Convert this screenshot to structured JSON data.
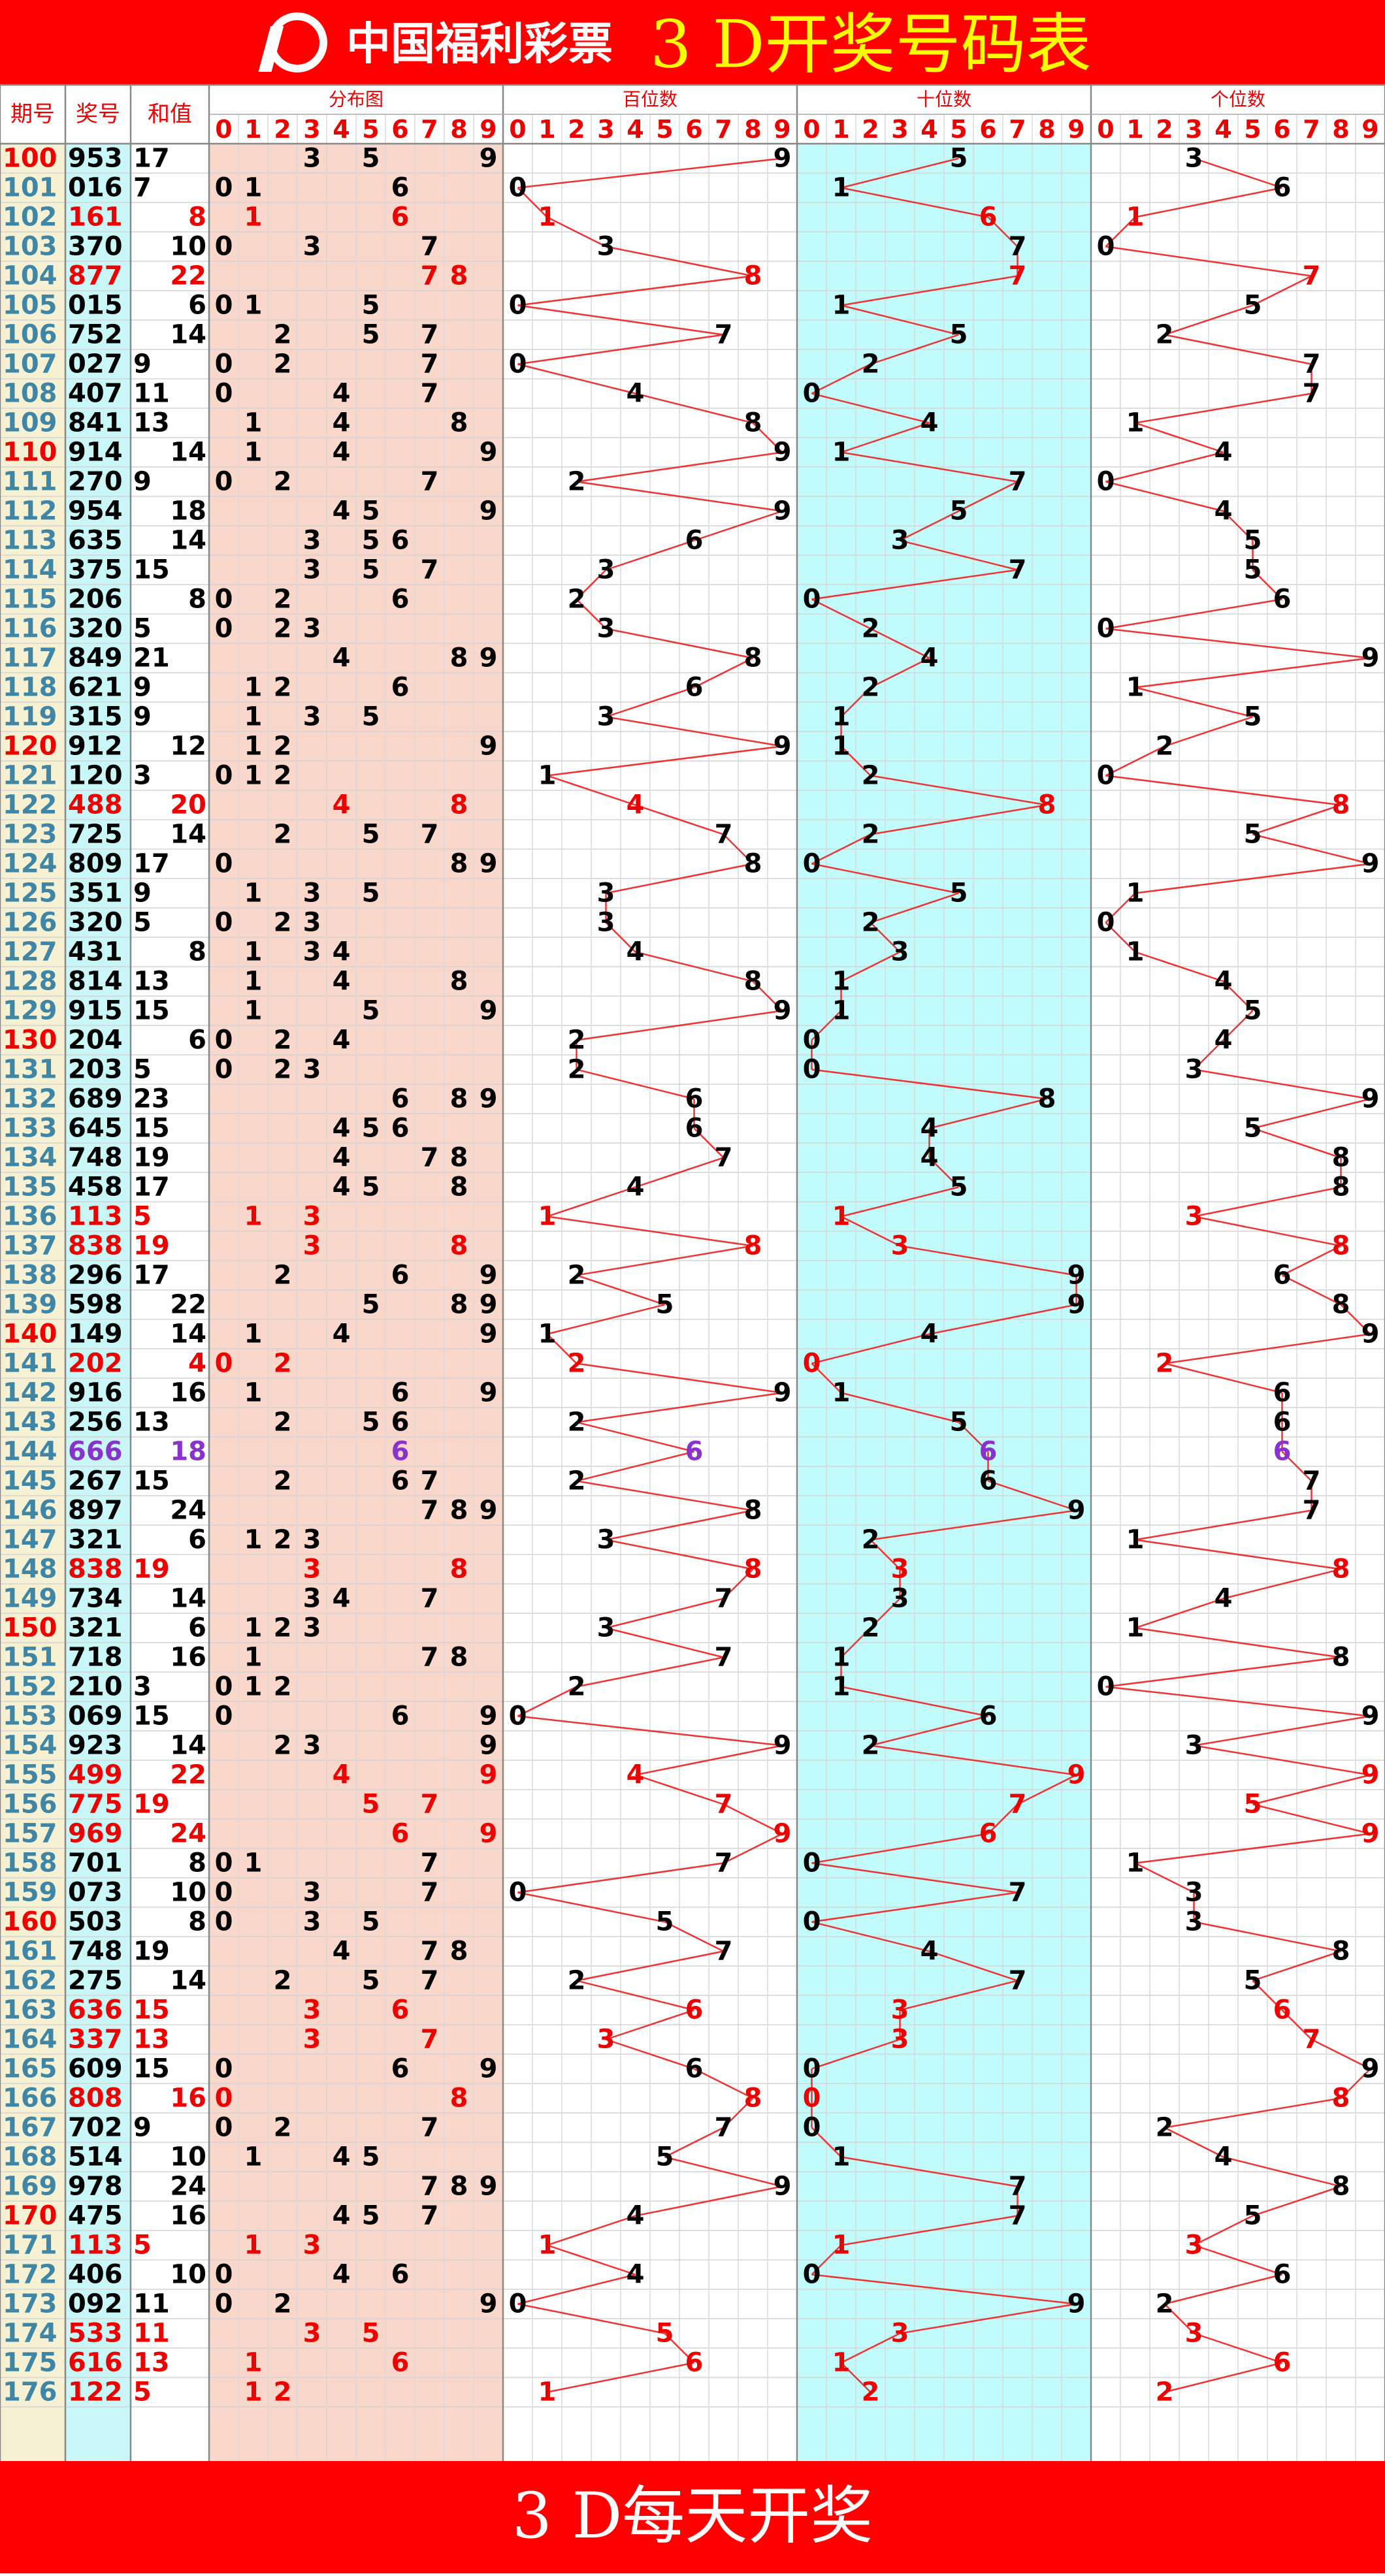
{
  "header": {
    "logo": "中国福利彩票",
    "title": "3 D开奖号码表"
  },
  "columns": {
    "period": "期号",
    "number": "奖号",
    "sum": "和值",
    "blocks": [
      "分布图",
      "百位数",
      "十位数",
      "个位数"
    ],
    "digits": [
      0,
      1,
      2,
      3,
      4,
      5,
      6,
      7,
      8,
      9
    ]
  },
  "rows": [
    {
      "period": 100,
      "digits": [
        9,
        5,
        3
      ],
      "sum": 17
    },
    {
      "period": 101,
      "digits": [
        0,
        1,
        6
      ],
      "sum": 7
    },
    {
      "period": 102,
      "digits": [
        1,
        6,
        1
      ],
      "sum": 8
    },
    {
      "period": 103,
      "digits": [
        3,
        7,
        0
      ],
      "sum": 10
    },
    {
      "period": 104,
      "digits": [
        8,
        7,
        7
      ],
      "sum": 22
    },
    {
      "period": 105,
      "digits": [
        0,
        1,
        5
      ],
      "sum": 6
    },
    {
      "period": 106,
      "digits": [
        7,
        5,
        2
      ],
      "sum": 14
    },
    {
      "period": 107,
      "digits": [
        0,
        2,
        7
      ],
      "sum": 9
    },
    {
      "period": 108,
      "digits": [
        4,
        0,
        7
      ],
      "sum": 11
    },
    {
      "period": 109,
      "digits": [
        8,
        4,
        1
      ],
      "sum": 13
    },
    {
      "period": 110,
      "digits": [
        9,
        1,
        4
      ],
      "sum": 14
    },
    {
      "period": 111,
      "digits": [
        2,
        7,
        0
      ],
      "sum": 9
    },
    {
      "period": 112,
      "digits": [
        9,
        5,
        4
      ],
      "sum": 18
    },
    {
      "period": 113,
      "digits": [
        6,
        3,
        5
      ],
      "sum": 14
    },
    {
      "period": 114,
      "digits": [
        3,
        7,
        5
      ],
      "sum": 15
    },
    {
      "period": 115,
      "digits": [
        2,
        0,
        6
      ],
      "sum": 8
    },
    {
      "period": 116,
      "digits": [
        3,
        2,
        0
      ],
      "sum": 5
    },
    {
      "period": 117,
      "digits": [
        8,
        4,
        9
      ],
      "sum": 21
    },
    {
      "period": 118,
      "digits": [
        6,
        2,
        1
      ],
      "sum": 9
    },
    {
      "period": 119,
      "digits": [
        3,
        1,
        5
      ],
      "sum": 9
    },
    {
      "period": 120,
      "digits": [
        9,
        1,
        2
      ],
      "sum": 12
    },
    {
      "period": 121,
      "digits": [
        1,
        2,
        0
      ],
      "sum": 3
    },
    {
      "period": 122,
      "digits": [
        4,
        8,
        8
      ],
      "sum": 20
    },
    {
      "period": 123,
      "digits": [
        7,
        2,
        5
      ],
      "sum": 14
    },
    {
      "period": 124,
      "digits": [
        8,
        0,
        9
      ],
      "sum": 17
    },
    {
      "period": 125,
      "digits": [
        3,
        5,
        1
      ],
      "sum": 9
    },
    {
      "period": 126,
      "digits": [
        3,
        2,
        0
      ],
      "sum": 5
    },
    {
      "period": 127,
      "digits": [
        4,
        3,
        1
      ],
      "sum": 8
    },
    {
      "period": 128,
      "digits": [
        8,
        1,
        4
      ],
      "sum": 13
    },
    {
      "period": 129,
      "digits": [
        9,
        1,
        5
      ],
      "sum": 15
    },
    {
      "period": 130,
      "digits": [
        2,
        0,
        4
      ],
      "sum": 6
    },
    {
      "period": 131,
      "digits": [
        2,
        0,
        3
      ],
      "sum": 5
    },
    {
      "period": 132,
      "digits": [
        6,
        8,
        9
      ],
      "sum": 23
    },
    {
      "period": 133,
      "digits": [
        6,
        4,
        5
      ],
      "sum": 15
    },
    {
      "period": 134,
      "digits": [
        7,
        4,
        8
      ],
      "sum": 19
    },
    {
      "period": 135,
      "digits": [
        4,
        5,
        8
      ],
      "sum": 17
    },
    {
      "period": 136,
      "digits": [
        1,
        1,
        3
      ],
      "sum": 5
    },
    {
      "period": 137,
      "digits": [
        8,
        3,
        8
      ],
      "sum": 19
    },
    {
      "period": 138,
      "digits": [
        2,
        9,
        6
      ],
      "sum": 17
    },
    {
      "period": 139,
      "digits": [
        5,
        9,
        8
      ],
      "sum": 22
    },
    {
      "period": 140,
      "digits": [
        1,
        4,
        9
      ],
      "sum": 14
    },
    {
      "period": 141,
      "digits": [
        2,
        0,
        2
      ],
      "sum": 4
    },
    {
      "period": 142,
      "digits": [
        9,
        1,
        6
      ],
      "sum": 16
    },
    {
      "period": 143,
      "digits": [
        2,
        5,
        6
      ],
      "sum": 13
    },
    {
      "period": 144,
      "digits": [
        6,
        6,
        6
      ],
      "sum": 18
    },
    {
      "period": 145,
      "digits": [
        2,
        6,
        7
      ],
      "sum": 15
    },
    {
      "period": 146,
      "digits": [
        8,
        9,
        7
      ],
      "sum": 24
    },
    {
      "period": 147,
      "digits": [
        3,
        2,
        1
      ],
      "sum": 6
    },
    {
      "period": 148,
      "digits": [
        8,
        3,
        8
      ],
      "sum": 19
    },
    {
      "period": 149,
      "digits": [
        7,
        3,
        4
      ],
      "sum": 14
    },
    {
      "period": 150,
      "digits": [
        3,
        2,
        1
      ],
      "sum": 6
    },
    {
      "period": 151,
      "digits": [
        7,
        1,
        8
      ],
      "sum": 16
    },
    {
      "period": 152,
      "digits": [
        2,
        1,
        0
      ],
      "sum": 3
    },
    {
      "period": 153,
      "digits": [
        0,
        6,
        9
      ],
      "sum": 15
    },
    {
      "period": 154,
      "digits": [
        9,
        2,
        3
      ],
      "sum": 14
    },
    {
      "period": 155,
      "digits": [
        4,
        9,
        9
      ],
      "sum": 22
    },
    {
      "period": 156,
      "digits": [
        7,
        7,
        5
      ],
      "sum": 19
    },
    {
      "period": 157,
      "digits": [
        9,
        6,
        9
      ],
      "sum": 24
    },
    {
      "period": 158,
      "digits": [
        7,
        0,
        1
      ],
      "sum": 8
    },
    {
      "period": 159,
      "digits": [
        0,
        7,
        3
      ],
      "sum": 10
    },
    {
      "period": 160,
      "digits": [
        5,
        0,
        3
      ],
      "sum": 8
    },
    {
      "period": 161,
      "digits": [
        7,
        4,
        8
      ],
      "sum": 19
    },
    {
      "period": 162,
      "digits": [
        2,
        7,
        5
      ],
      "sum": 14
    },
    {
      "period": 163,
      "digits": [
        6,
        3,
        6
      ],
      "sum": 15
    },
    {
      "period": 164,
      "digits": [
        3,
        3,
        7
      ],
      "sum": 13
    },
    {
      "period": 165,
      "digits": [
        6,
        0,
        9
      ],
      "sum": 15
    },
    {
      "period": 166,
      "digits": [
        8,
        0,
        8
      ],
      "sum": 16
    },
    {
      "period": 167,
      "digits": [
        7,
        0,
        2
      ],
      "sum": 9
    },
    {
      "period": 168,
      "digits": [
        5,
        1,
        4
      ],
      "sum": 10
    },
    {
      "period": 169,
      "digits": [
        9,
        7,
        8
      ],
      "sum": 24
    },
    {
      "period": 170,
      "digits": [
        4,
        7,
        5
      ],
      "sum": 16
    },
    {
      "period": 171,
      "digits": [
        1,
        1,
        3
      ],
      "sum": 5
    },
    {
      "period": 172,
      "digits": [
        4,
        0,
        6
      ],
      "sum": 10
    },
    {
      "period": 173,
      "digits": [
        0,
        9,
        2
      ],
      "sum": 11
    },
    {
      "period": 174,
      "digits": [
        5,
        3,
        3
      ],
      "sum": 11
    },
    {
      "period": 175,
      "digits": [
        6,
        1,
        6
      ],
      "sum": 13
    },
    {
      "period": 176,
      "digits": [
        1,
        2,
        2
      ],
      "sum": 5
    }
  ],
  "footer": "3 D每天开奖"
}
